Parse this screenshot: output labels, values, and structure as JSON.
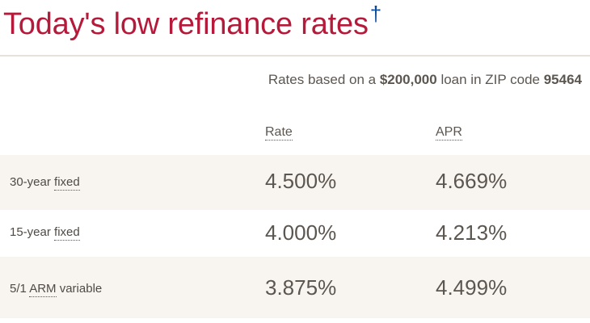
{
  "header": {
    "title": "Today's low refinance rates",
    "dagger": "†"
  },
  "loan_note": {
    "prefix": "Rates based on a ",
    "amount": "$200,000",
    "middle": " loan in ZIP code ",
    "zip": "95464"
  },
  "table": {
    "columns": {
      "rate": "Rate",
      "apr": "APR"
    },
    "rows": [
      {
        "term": "30-year",
        "type": "fixed",
        "rate": "4.500%",
        "apr": "4.669%"
      },
      {
        "term": "15-year",
        "type": "fixed",
        "rate": "4.000%",
        "apr": "4.213%"
      },
      {
        "term": "5/1",
        "type": "ARM",
        "suffix": "variable",
        "rate": "3.875%",
        "apr": "4.499%"
      }
    ]
  },
  "colors": {
    "title": "#b51a3b",
    "dagger": "#0a4a9c",
    "row_shade": "#f8f5f1",
    "text": "#5c5650"
  }
}
